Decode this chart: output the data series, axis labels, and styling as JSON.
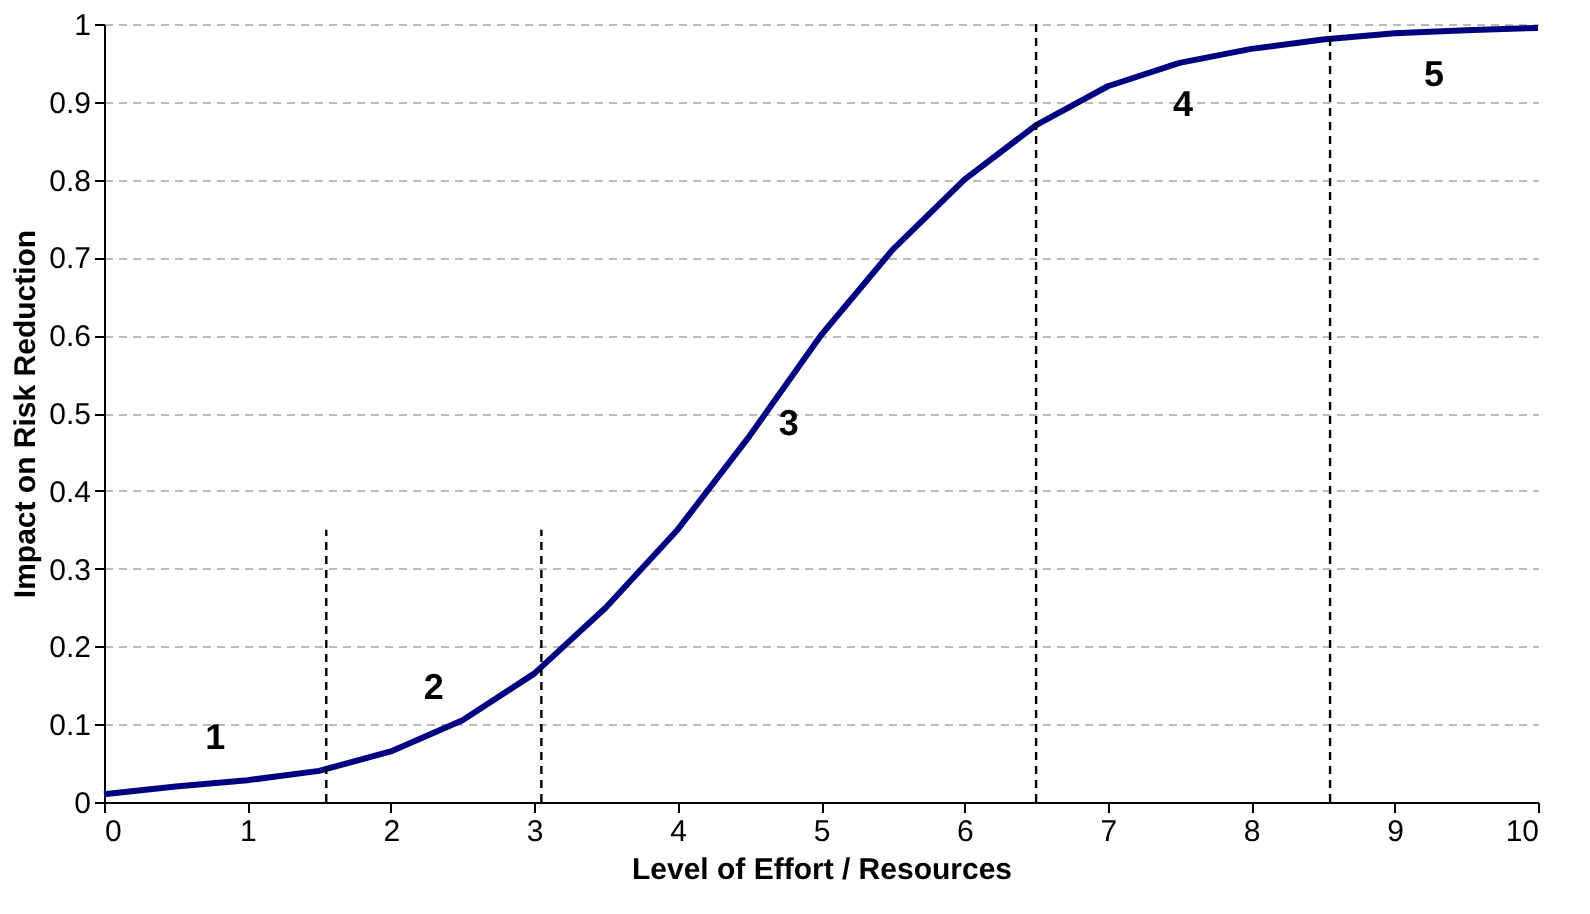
{
  "chart_data": {
    "type": "line",
    "xlabel": "Level of Effort / Resources",
    "ylabel": "Impact on Risk Reduction",
    "xlim": [
      0,
      10
    ],
    "xticks": [
      0,
      1,
      2,
      3,
      4,
      5,
      6,
      7,
      8,
      9,
      10
    ],
    "ylim": [
      0,
      1
    ],
    "yticks": [
      0,
      0.1,
      0.2,
      0.3,
      0.4,
      0.5,
      0.6,
      0.7,
      0.8,
      0.9,
      1
    ],
    "grid": "y",
    "marker": "none",
    "series": [
      {
        "color": "#000080",
        "line_style": "solid",
        "x": [
          0,
          0.5,
          1,
          1.5,
          2,
          2.5,
          3,
          3.5,
          4,
          4.5,
          5,
          5.5,
          6,
          6.5,
          7,
          7.5,
          8,
          8.5,
          9,
          9.5,
          10
        ],
        "values": [
          0.01,
          0.02,
          0.028,
          0.04,
          0.065,
          0.105,
          0.165,
          0.25,
          0.35,
          0.47,
          0.6,
          0.71,
          0.8,
          0.87,
          0.92,
          0.95,
          0.968,
          0.98,
          0.988,
          0.992,
          0.995
        ]
      },
      {
        "color": "#000000",
        "line_style": "dashed",
        "x": [
          1.55,
          1.55
        ],
        "values": [
          0,
          0.35
        ]
      },
      {
        "color": "#000000",
        "line_style": "dashed",
        "x": [
          3.05,
          3.05
        ],
        "values": [
          0,
          0.35
        ]
      },
      {
        "color": "#000000",
        "line_style": "dashed",
        "x": [
          6.5,
          6.5
        ],
        "values": [
          0,
          1
        ]
      },
      {
        "color": "#000000",
        "line_style": "dashed",
        "x": [
          8.55,
          8.55
        ],
        "values": [
          0,
          1
        ]
      }
    ],
    "annotations": [
      "1",
      "2",
      "3",
      "4",
      "5"
    ]
  }
}
